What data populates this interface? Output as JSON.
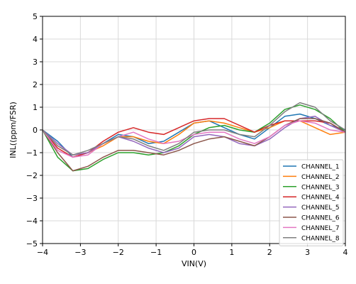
{
  "chart_data": {
    "type": "line",
    "xlabel": "VIN(V)",
    "ylabel": "INL((ppm/FSR)",
    "xlim": [
      -4,
      4
    ],
    "ylim": [
      -5,
      5
    ],
    "xticks": [
      -4,
      -3,
      -2,
      -1,
      0,
      1,
      2,
      3,
      4
    ],
    "yticks": [
      -5,
      -4,
      -3,
      -2,
      -1,
      0,
      1,
      2,
      3,
      4,
      5
    ],
    "xtick_labels": [
      "−4",
      "−3",
      "−2",
      "−1",
      "0",
      "1",
      "2",
      "3",
      "4"
    ],
    "ytick_labels": [
      "−5",
      "−4",
      "−3",
      "−2",
      "−1",
      "0",
      "1",
      "2",
      "3",
      "4",
      "5"
    ],
    "grid": true,
    "legend_position": "lower-right",
    "x": [
      -4.0,
      -3.6,
      -3.2,
      -2.8,
      -2.4,
      -2.0,
      -1.6,
      -1.2,
      -0.8,
      -0.4,
      0.0,
      0.4,
      0.8,
      1.2,
      1.6,
      2.0,
      2.4,
      2.8,
      3.2,
      3.6,
      4.0
    ],
    "series": [
      {
        "name": "CHANNEL_1",
        "color": "#1f77b4",
        "values": [
          0,
          -0.5,
          -1.2,
          -1.0,
          -0.6,
          -0.2,
          -0.3,
          -0.6,
          -0.5,
          -0.1,
          0.3,
          0.4,
          0.1,
          -0.2,
          -0.4,
          0.1,
          0.6,
          0.7,
          0.5,
          0.2,
          0
        ]
      },
      {
        "name": "CHANNEL_2",
        "color": "#ff7f0e",
        "values": [
          0,
          -0.7,
          -1.1,
          -1.0,
          -0.7,
          -0.3,
          -0.3,
          -0.5,
          -0.6,
          -0.2,
          0.3,
          0.4,
          0.3,
          0.1,
          -0.1,
          0.1,
          0.4,
          0.4,
          0.1,
          -0.2,
          -0.1
        ]
      },
      {
        "name": "CHANNEL_3",
        "color": "#2ca02c",
        "values": [
          0,
          -1.2,
          -1.8,
          -1.7,
          -1.3,
          -1.0,
          -1.0,
          -1.1,
          -1.0,
          -0.7,
          -0.2,
          0.1,
          0.2,
          0.0,
          -0.1,
          0.3,
          0.9,
          1.1,
          0.9,
          0.5,
          -0.1
        ]
      },
      {
        "name": "CHANNEL_4",
        "color": "#d62728",
        "values": [
          0,
          -0.8,
          -1.2,
          -1.0,
          -0.5,
          -0.1,
          0.1,
          -0.1,
          -0.2,
          0.1,
          0.4,
          0.5,
          0.5,
          0.2,
          -0.1,
          0.2,
          0.4,
          0.4,
          0.4,
          0.3,
          -0.1
        ]
      },
      {
        "name": "CHANNEL_5",
        "color": "#9467bd",
        "values": [
          0,
          -0.6,
          -1.1,
          -1.0,
          -0.6,
          -0.3,
          -0.5,
          -0.8,
          -1.0,
          -0.8,
          -0.3,
          -0.2,
          -0.3,
          -0.6,
          -0.7,
          -0.4,
          0.1,
          0.5,
          0.6,
          0.2,
          -0.1
        ]
      },
      {
        "name": "CHANNEL_6",
        "color": "#8c564b",
        "values": [
          0,
          -1.0,
          -1.8,
          -1.6,
          -1.2,
          -0.9,
          -0.9,
          -1.0,
          -1.1,
          -0.9,
          -0.6,
          -0.4,
          -0.3,
          -0.5,
          -0.7,
          -0.3,
          0.2,
          0.5,
          0.5,
          0.3,
          -0.1
        ]
      },
      {
        "name": "CHANNEL_7",
        "color": "#e377c2",
        "values": [
          0,
          -0.9,
          -1.2,
          -1.1,
          -0.6,
          -0.3,
          -0.1,
          -0.4,
          -0.6,
          -0.5,
          -0.2,
          -0.1,
          -0.1,
          -0.4,
          -0.6,
          -0.3,
          0.2,
          0.4,
          0.3,
          0.0,
          -0.1
        ]
      },
      {
        "name": "CHANNEL_8",
        "color": "#7f7f7f",
        "values": [
          0,
          -0.7,
          -1.1,
          -0.9,
          -0.6,
          -0.3,
          -0.4,
          -0.7,
          -0.9,
          -0.6,
          -0.1,
          0.0,
          0.0,
          -0.2,
          -0.3,
          0.2,
          0.8,
          1.2,
          1.0,
          0.4,
          0.0
        ]
      }
    ]
  }
}
